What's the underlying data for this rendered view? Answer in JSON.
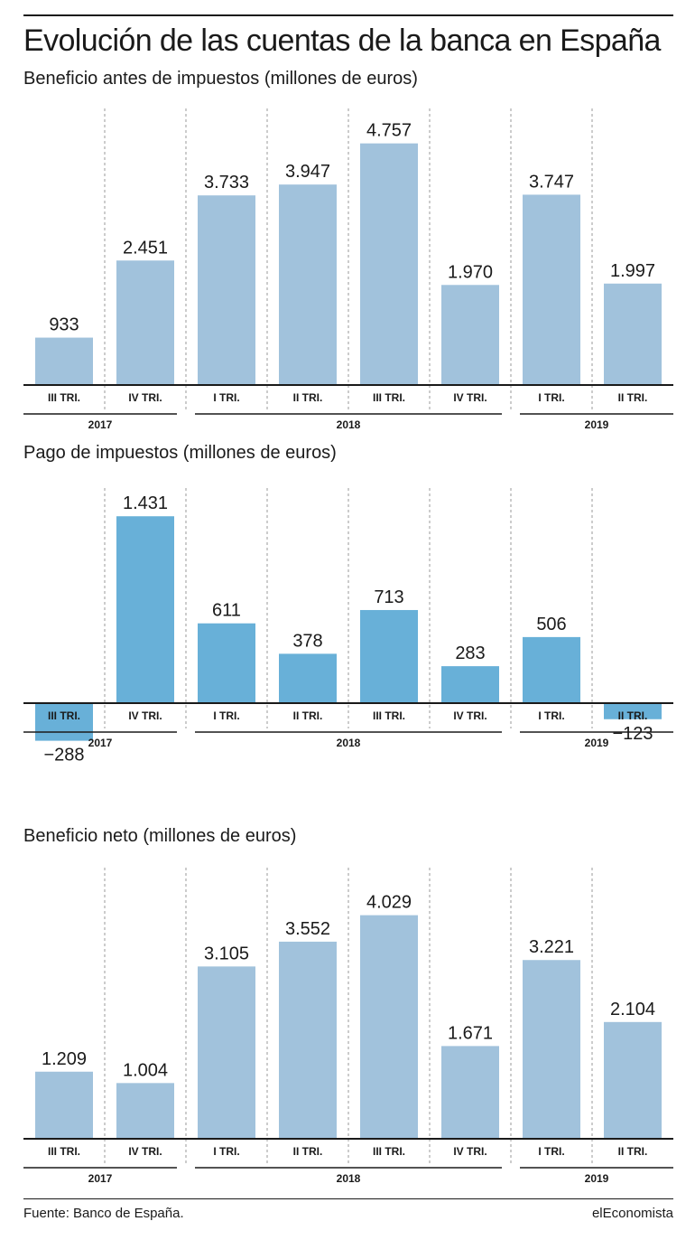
{
  "title": "Evolución de las cuentas de la banca en España",
  "source": "Fuente: Banco de España.",
  "brand": "elEconomista",
  "colors": {
    "light_bar": "#a1c2dc",
    "tax_bar": "#68b0d8",
    "text": "#1a1a1a",
    "grid": "#999999"
  },
  "chart_data": [
    {
      "type": "bar",
      "title": "Beneficio antes de impuestos (millones de euros)",
      "categories": [
        "III TRI.",
        "IV TRI.",
        "I TRI.",
        "II TRI.",
        "III TRI.",
        "IV TRI.",
        "I TRI.",
        "II TRI."
      ],
      "values": [
        933,
        2451,
        3733,
        3947,
        4757,
        1970,
        3747,
        1997
      ],
      "value_labels": [
        "933",
        "2.451",
        "3.733",
        "3.947",
        "4.757",
        "1.970",
        "3.747",
        "1.997"
      ],
      "years": [
        {
          "label": "2017",
          "from": 0,
          "to": 1
        },
        {
          "label": "2018",
          "from": 2,
          "to": 5
        },
        {
          "label": "2019",
          "from": 6,
          "to": 7
        }
      ],
      "color": "#a1c2dc",
      "grid": "dashed vertical separators"
    },
    {
      "type": "bar",
      "title": "Pago de impuestos (millones de euros)",
      "categories": [
        "III TRI.",
        "IV TRI.",
        "I TRI.",
        "II TRI.",
        "III TRI.",
        "IV TRI.",
        "I TRI.",
        "II TRI."
      ],
      "values": [
        -288,
        1431,
        611,
        378,
        713,
        283,
        506,
        -123
      ],
      "value_labels": [
        "−288",
        "1.431",
        "611",
        "378",
        "713",
        "283",
        "506",
        "−123"
      ],
      "years": [
        {
          "label": "2017",
          "from": 0,
          "to": 1
        },
        {
          "label": "2018",
          "from": 2,
          "to": 5
        },
        {
          "label": "2019",
          "from": 6,
          "to": 7
        }
      ],
      "color": "#68b0d8",
      "grid": "dashed vertical separators"
    },
    {
      "type": "bar",
      "title": "Beneficio neto (millones de euros)",
      "categories": [
        "III TRI.",
        "IV TRI.",
        "I TRI.",
        "II TRI.",
        "III TRI.",
        "IV TRI.",
        "I TRI.",
        "II TRI."
      ],
      "values": [
        1209,
        1004,
        3105,
        3552,
        4029,
        1671,
        3221,
        2104
      ],
      "value_labels": [
        "1.209",
        "1.004",
        "3.105",
        "3.552",
        "4.029",
        "1.671",
        "3.221",
        "2.104"
      ],
      "years": [
        {
          "label": "2017",
          "from": 0,
          "to": 1
        },
        {
          "label": "2018",
          "from": 2,
          "to": 5
        },
        {
          "label": "2019",
          "from": 6,
          "to": 7
        }
      ],
      "color": "#a1c2dc",
      "grid": "dashed vertical separators"
    }
  ]
}
